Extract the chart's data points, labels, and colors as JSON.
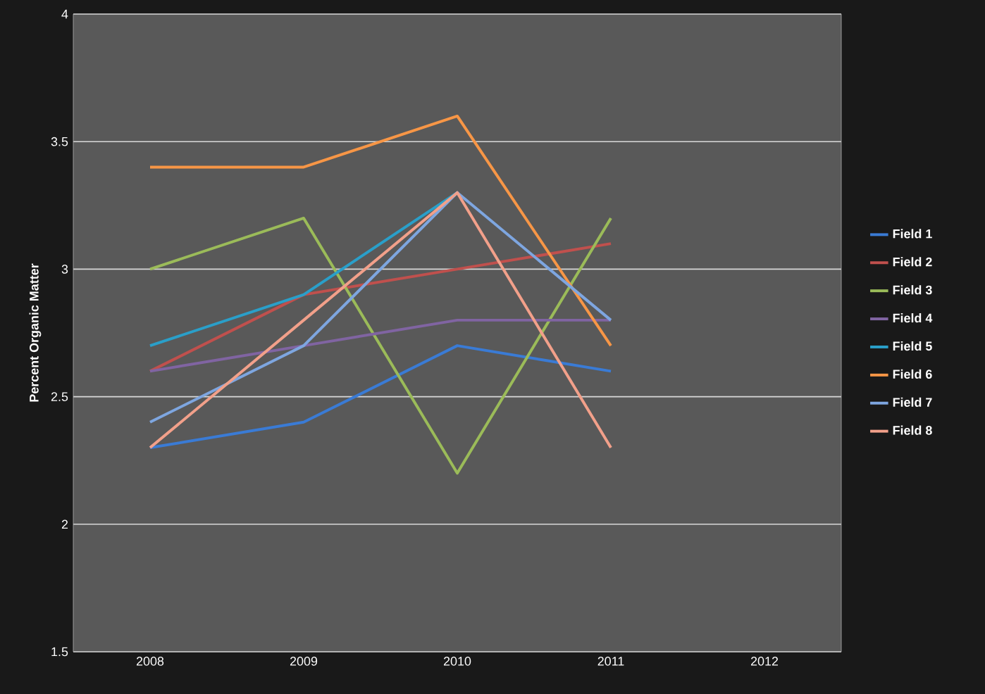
{
  "chart_data": {
    "type": "line",
    "ylabel": "Percent Organic Matter",
    "categories": [
      "2008",
      "2009",
      "2010",
      "2011",
      "2012"
    ],
    "series": [
      {
        "name": "Field 1",
        "color": "#3a7bd5",
        "values": [
          2.3,
          2.4,
          2.7,
          2.6,
          null
        ]
      },
      {
        "name": "Field 2",
        "color": "#c0504d",
        "values": [
          2.6,
          2.9,
          3.0,
          3.1,
          null
        ]
      },
      {
        "name": "Field 3",
        "color": "#9bbb59",
        "values": [
          3.0,
          3.2,
          2.2,
          3.2,
          null
        ]
      },
      {
        "name": "Field 4",
        "color": "#8064a2",
        "values": [
          2.6,
          2.7,
          2.8,
          2.8,
          null
        ]
      },
      {
        "name": "Field 5",
        "color": "#2a9fc9",
        "values": [
          2.7,
          2.9,
          3.3,
          null,
          null
        ]
      },
      {
        "name": "Field 6",
        "color": "#f79646",
        "values": [
          3.4,
          3.4,
          3.6,
          2.7,
          null
        ]
      },
      {
        "name": "Field 7",
        "color": "#7ea6e0",
        "values": [
          2.4,
          2.7,
          3.3,
          2.8,
          null
        ]
      },
      {
        "name": "Field 8",
        "color": "#f2a08a",
        "values": [
          2.3,
          2.8,
          3.3,
          2.3,
          null
        ]
      }
    ],
    "ylim": [
      1.5,
      4
    ],
    "yticks": [
      1.5,
      2,
      2.5,
      3,
      3.5,
      4
    ],
    "grid": "y",
    "legend": "right",
    "marker": "none",
    "line_style": "solid"
  }
}
